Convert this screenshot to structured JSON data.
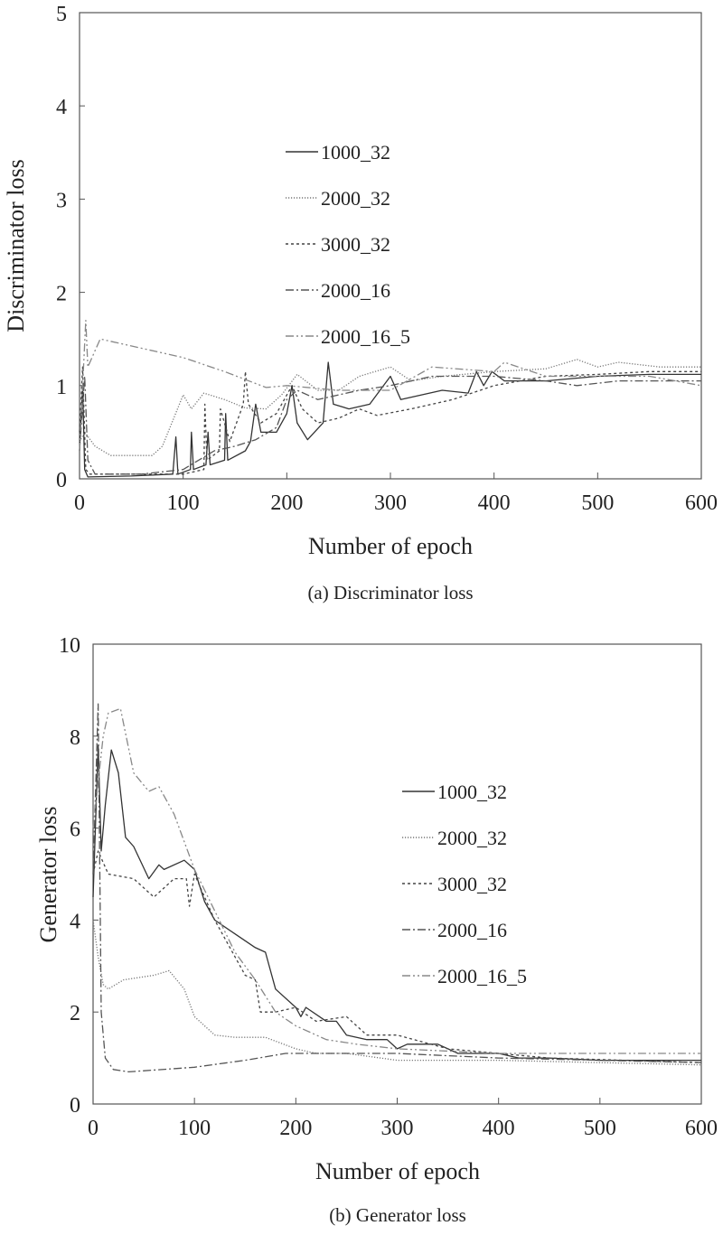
{
  "chart_data": [
    {
      "type": "line",
      "caption": "(a) Discriminator loss",
      "xlabel": "Number of epoch",
      "ylabel": "Discriminator loss",
      "xlim": [
        0,
        600
      ],
      "ylim": [
        0,
        5
      ],
      "xticks": [
        0,
        100,
        200,
        300,
        400,
        500,
        600
      ],
      "yticks": [
        0,
        1,
        2,
        3,
        4,
        5
      ],
      "grid": false,
      "legend": "center",
      "series": [
        {
          "name": "1000_32",
          "style": "solid",
          "color": "#333333",
          "points": [
            [
              0,
              0.3
            ],
            [
              3,
              1.0
            ],
            [
              5,
              0.1
            ],
            [
              8,
              0.02
            ],
            [
              50,
              0.03
            ],
            [
              90,
              0.05
            ],
            [
              93,
              0.45
            ],
            [
              95,
              0.05
            ],
            [
              107,
              0.1
            ],
            [
              108,
              0.5
            ],
            [
              110,
              0.1
            ],
            [
              122,
              0.15
            ],
            [
              124,
              0.5
            ],
            [
              126,
              0.15
            ],
            [
              140,
              0.2
            ],
            [
              141,
              0.7
            ],
            [
              143,
              0.2
            ],
            [
              160,
              0.3
            ],
            [
              165,
              0.4
            ],
            [
              170,
              0.8
            ],
            [
              175,
              0.5
            ],
            [
              190,
              0.5
            ],
            [
              200,
              0.7
            ],
            [
              205,
              1.0
            ],
            [
              210,
              0.6
            ],
            [
              220,
              0.42
            ],
            [
              235,
              0.6
            ],
            [
              240,
              1.25
            ],
            [
              245,
              0.8
            ],
            [
              260,
              0.75
            ],
            [
              280,
              0.8
            ],
            [
              300,
              1.1
            ],
            [
              310,
              0.85
            ],
            [
              330,
              0.9
            ],
            [
              350,
              0.95
            ],
            [
              375,
              0.92
            ],
            [
              383,
              1.15
            ],
            [
              390,
              1.0
            ],
            [
              398,
              1.15
            ],
            [
              410,
              1.05
            ],
            [
              450,
              1.05
            ],
            [
              500,
              1.1
            ],
            [
              550,
              1.12
            ],
            [
              600,
              1.12
            ]
          ]
        },
        {
          "name": "2000_32",
          "style": "dotted",
          "color": "#777777",
          "points": [
            [
              0,
              0.4
            ],
            [
              5,
              0.5
            ],
            [
              15,
              0.35
            ],
            [
              30,
              0.25
            ],
            [
              70,
              0.25
            ],
            [
              80,
              0.35
            ],
            [
              100,
              0.9
            ],
            [
              108,
              0.75
            ],
            [
              120,
              0.92
            ],
            [
              140,
              0.85
            ],
            [
              160,
              0.76
            ],
            [
              180,
              0.75
            ],
            [
              195,
              0.9
            ],
            [
              210,
              1.12
            ],
            [
              230,
              0.95
            ],
            [
              250,
              0.95
            ],
            [
              270,
              1.1
            ],
            [
              300,
              1.2
            ],
            [
              320,
              1.05
            ],
            [
              350,
              1.1
            ],
            [
              400,
              1.15
            ],
            [
              450,
              1.18
            ],
            [
              480,
              1.28
            ],
            [
              500,
              1.2
            ],
            [
              520,
              1.25
            ],
            [
              560,
              1.2
            ],
            [
              600,
              1.2
            ]
          ]
        },
        {
          "name": "3000_32",
          "style": "dashed",
          "color": "#444444",
          "points": [
            [
              0,
              0.5
            ],
            [
              3,
              1.2
            ],
            [
              6,
              0.1
            ],
            [
              10,
              0.05
            ],
            [
              50,
              0.05
            ],
            [
              100,
              0.05
            ],
            [
              120,
              0.1
            ],
            [
              121,
              0.8
            ],
            [
              123,
              0.2
            ],
            [
              135,
              0.3
            ],
            [
              136,
              0.75
            ],
            [
              145,
              0.4
            ],
            [
              158,
              0.8
            ],
            [
              160,
              1.15
            ],
            [
              163,
              0.8
            ],
            [
              175,
              0.6
            ],
            [
              190,
              0.7
            ],
            [
              205,
              1.0
            ],
            [
              215,
              0.75
            ],
            [
              230,
              0.6
            ],
            [
              250,
              0.65
            ],
            [
              270,
              0.75
            ],
            [
              287,
              0.68
            ],
            [
              320,
              0.75
            ],
            [
              360,
              0.85
            ],
            [
              400,
              1.0
            ],
            [
              450,
              1.1
            ],
            [
              500,
              1.12
            ],
            [
              550,
              1.15
            ],
            [
              600,
              1.15
            ]
          ]
        },
        {
          "name": "2000_16",
          "style": "dash-dot",
          "color": "#555555",
          "points": [
            [
              0,
              0.3
            ],
            [
              5,
              1.1
            ],
            [
              8,
              0.2
            ],
            [
              15,
              0.05
            ],
            [
              60,
              0.05
            ],
            [
              100,
              0.1
            ],
            [
              130,
              0.3
            ],
            [
              150,
              0.35
            ],
            [
              170,
              0.42
            ],
            [
              190,
              0.55
            ],
            [
              200,
              0.85
            ],
            [
              210,
              0.95
            ],
            [
              230,
              0.85
            ],
            [
              250,
              0.9
            ],
            [
              270,
              0.95
            ],
            [
              300,
              1.0
            ],
            [
              340,
              1.1
            ],
            [
              380,
              1.1
            ],
            [
              400,
              1.1
            ],
            [
              450,
              1.05
            ],
            [
              480,
              1.0
            ],
            [
              520,
              1.05
            ],
            [
              550,
              1.05
            ],
            [
              600,
              1.05
            ]
          ]
        },
        {
          "name": "2000_16_5",
          "style": "dash-dot-dot",
          "color": "#888888",
          "points": [
            [
              0,
              0.3
            ],
            [
              6,
              1.7
            ],
            [
              8,
              1.2
            ],
            [
              20,
              1.5
            ],
            [
              60,
              1.4
            ],
            [
              100,
              1.3
            ],
            [
              140,
              1.15
            ],
            [
              180,
              0.98
            ],
            [
              200,
              1.0
            ],
            [
              250,
              0.95
            ],
            [
              300,
              0.95
            ],
            [
              340,
              1.2
            ],
            [
              400,
              1.15
            ],
            [
              410,
              1.25
            ],
            [
              450,
              1.1
            ],
            [
              500,
              1.1
            ],
            [
              550,
              1.1
            ],
            [
              600,
              1.0
            ]
          ]
        }
      ]
    },
    {
      "type": "line",
      "caption": "(b) Generator loss",
      "xlabel": "Number of epoch",
      "ylabel": "Generator loss",
      "xlim": [
        0,
        600
      ],
      "ylim": [
        0,
        10
      ],
      "xticks": [
        0,
        100,
        200,
        300,
        400,
        500,
        600
      ],
      "yticks": [
        0,
        2,
        4,
        6,
        8,
        10
      ],
      "grid": false,
      "legend": "right",
      "series": [
        {
          "name": "1000_32",
          "style": "solid",
          "color": "#333333",
          "points": [
            [
              0,
              4.5
            ],
            [
              5,
              7.8
            ],
            [
              8,
              5.5
            ],
            [
              12,
              6.5
            ],
            [
              18,
              7.7
            ],
            [
              25,
              7.2
            ],
            [
              32,
              5.8
            ],
            [
              40,
              5.6
            ],
            [
              55,
              4.9
            ],
            [
              65,
              5.2
            ],
            [
              70,
              5.1
            ],
            [
              90,
              5.3
            ],
            [
              100,
              5.1
            ],
            [
              110,
              4.4
            ],
            [
              120,
              4.0
            ],
            [
              140,
              3.7
            ],
            [
              160,
              3.4
            ],
            [
              170,
              3.3
            ],
            [
              180,
              2.5
            ],
            [
              200,
              2.1
            ],
            [
              205,
              1.9
            ],
            [
              210,
              2.1
            ],
            [
              230,
              1.8
            ],
            [
              240,
              1.8
            ],
            [
              250,
              1.5
            ],
            [
              270,
              1.4
            ],
            [
              290,
              1.4
            ],
            [
              300,
              1.2
            ],
            [
              310,
              1.3
            ],
            [
              340,
              1.3
            ],
            [
              360,
              1.1
            ],
            [
              400,
              1.1
            ],
            [
              420,
              1.0
            ],
            [
              450,
              1.0
            ],
            [
              500,
              0.95
            ],
            [
              600,
              0.95
            ]
          ]
        },
        {
          "name": "2000_32",
          "style": "dotted",
          "color": "#777777",
          "points": [
            [
              0,
              4.0
            ],
            [
              5,
              3.2
            ],
            [
              10,
              2.6
            ],
            [
              15,
              2.5
            ],
            [
              30,
              2.7
            ],
            [
              60,
              2.8
            ],
            [
              75,
              2.9
            ],
            [
              90,
              2.5
            ],
            [
              100,
              1.9
            ],
            [
              120,
              1.5
            ],
            [
              140,
              1.45
            ],
            [
              170,
              1.45
            ],
            [
              200,
              1.2
            ],
            [
              220,
              1.1
            ],
            [
              250,
              1.1
            ],
            [
              300,
              0.95
            ],
            [
              400,
              0.95
            ],
            [
              500,
              0.9
            ],
            [
              600,
              0.85
            ]
          ]
        },
        {
          "name": "3000_32",
          "style": "dashed",
          "color": "#444444",
          "points": [
            [
              0,
              5
            ],
            [
              5,
              5.5
            ],
            [
              15,
              5.0
            ],
            [
              40,
              4.9
            ],
            [
              60,
              4.5
            ],
            [
              80,
              4.9
            ],
            [
              92,
              4.9
            ],
            [
              95,
              4.3
            ],
            [
              100,
              5.0
            ],
            [
              120,
              4.0
            ],
            [
              140,
              3.2
            ],
            [
              150,
              2.8
            ],
            [
              160,
              2.7
            ],
            [
              165,
              2.0
            ],
            [
              180,
              2.0
            ],
            [
              200,
              2.1
            ],
            [
              220,
              1.8
            ],
            [
              250,
              1.9
            ],
            [
              270,
              1.5
            ],
            [
              300,
              1.5
            ],
            [
              350,
              1.2
            ],
            [
              400,
              1.1
            ],
            [
              450,
              1.0
            ],
            [
              600,
              0.9
            ]
          ]
        },
        {
          "name": "2000_16",
          "style": "dash-dot",
          "color": "#555555",
          "points": [
            [
              0,
              5
            ],
            [
              5,
              8.7
            ],
            [
              8,
              2.0
            ],
            [
              12,
              1.0
            ],
            [
              20,
              0.75
            ],
            [
              35,
              0.7
            ],
            [
              100,
              0.8
            ],
            [
              150,
              0.95
            ],
            [
              190,
              1.1
            ],
            [
              250,
              1.1
            ],
            [
              300,
              1.1
            ],
            [
              400,
              1.0
            ],
            [
              500,
              0.95
            ],
            [
              600,
              0.9
            ]
          ]
        },
        {
          "name": "2000_16_5",
          "style": "dash-dot-dot",
          "color": "#888888",
          "points": [
            [
              0,
              6
            ],
            [
              10,
              8.0
            ],
            [
              15,
              8.5
            ],
            [
              27,
              8.6
            ],
            [
              40,
              7.2
            ],
            [
              55,
              6.8
            ],
            [
              65,
              6.9
            ],
            [
              80,
              6.3
            ],
            [
              100,
              5.1
            ],
            [
              120,
              4.2
            ],
            [
              140,
              3.3
            ],
            [
              160,
              2.7
            ],
            [
              180,
              2.0
            ],
            [
              200,
              1.7
            ],
            [
              230,
              1.4
            ],
            [
              260,
              1.3
            ],
            [
              300,
              1.2
            ],
            [
              400,
              1.1
            ],
            [
              450,
              1.1
            ],
            [
              500,
              1.1
            ],
            [
              600,
              1.1
            ]
          ]
        }
      ]
    }
  ]
}
